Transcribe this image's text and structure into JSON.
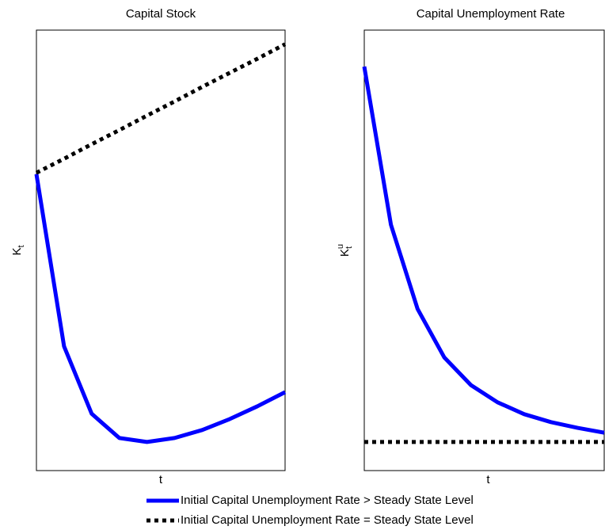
{
  "chart_data": [
    {
      "type": "line",
      "title": "Capital Stock",
      "x_label": "t",
      "y_label": {
        "main": "K",
        "sub": "t"
      },
      "x": [
        0,
        1,
        2,
        3,
        4,
        5,
        6,
        7,
        8,
        9
      ],
      "xlim": [
        0,
        9
      ],
      "ylim": [
        0,
        100
      ],
      "legend": "bottom",
      "series": [
        {
          "name": "Initial Capital Unemployment Rate > Steady State Level",
          "color": "#0000ff",
          "style": "solid",
          "values": [
            67.3,
            28.2,
            12.9,
            7.4,
            6.5,
            7.4,
            9.2,
            11.7,
            14.6,
            17.8
          ]
        },
        {
          "name": "Initial Capital Unemployment Rate = Steady State Level",
          "color": "#000000",
          "style": "dotted",
          "values": [
            67.6,
            70.8,
            74.1,
            77.3,
            80.6,
            83.8,
            87.1,
            90.3,
            93.5,
            96.8
          ]
        }
      ]
    },
    {
      "type": "line",
      "title": "Capital Unemployment Rate",
      "x_label": "t",
      "y_label": {
        "main": "K",
        "sup": "u",
        "sub": "t"
      },
      "x": [
        0,
        1,
        2,
        3,
        4,
        5,
        6,
        7,
        8,
        9
      ],
      "xlim": [
        0,
        9
      ],
      "ylim": [
        0,
        100
      ],
      "series": [
        {
          "color": "#0000ff",
          "style": "solid",
          "values": [
            91.7,
            55.8,
            36.7,
            25.7,
            19.4,
            15.5,
            12.8,
            11.0,
            9.7,
            8.6
          ]
        },
        {
          "color": "#000000",
          "style": "dotted",
          "values": [
            6.5,
            6.5,
            6.5,
            6.5,
            6.5,
            6.5,
            6.5,
            6.5,
            6.5,
            6.5
          ]
        }
      ]
    }
  ]
}
